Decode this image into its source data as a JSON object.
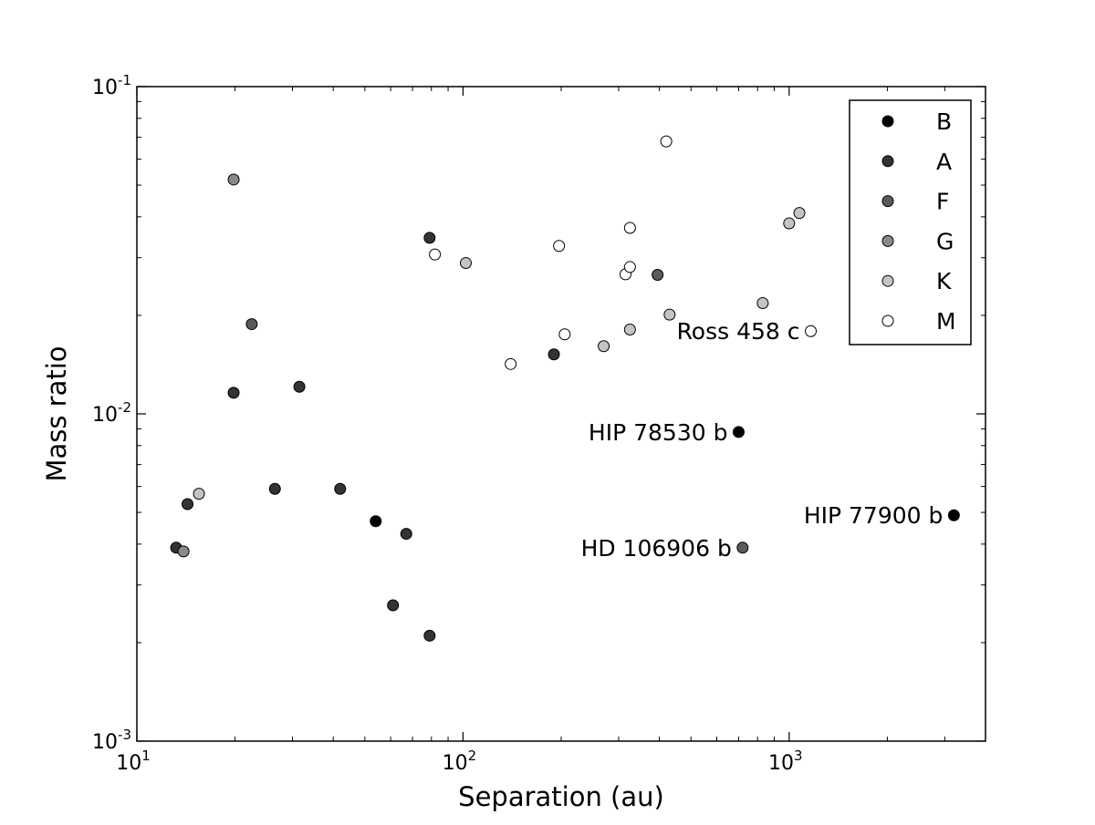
{
  "chart_data": {
    "type": "scatter",
    "title": "",
    "xlabel": "Separation (au)",
    "ylabel": "Mass ratio",
    "xscale": "log",
    "yscale": "log",
    "xlim": [
      10,
      4000
    ],
    "ylim": [
      0.001,
      0.1
    ],
    "grid": false,
    "legend_position": "top-right",
    "x_ticks": [
      {
        "value": 10,
        "base": "10",
        "exp": "1"
      },
      {
        "value": 100,
        "base": "10",
        "exp": "2"
      },
      {
        "value": 1000,
        "base": "10",
        "exp": "3"
      }
    ],
    "y_ticks": [
      {
        "value": 0.001,
        "base": "10",
        "exp": "-3"
      },
      {
        "value": 0.01,
        "base": "10",
        "exp": "-2"
      },
      {
        "value": 0.1,
        "base": "10",
        "exp": "-1"
      }
    ],
    "series": [
      {
        "name": "B",
        "color": "#000000",
        "points": [
          {
            "x": 54,
            "y": 0.0047
          },
          {
            "x": 700,
            "y": 0.0088
          },
          {
            "x": 3200,
            "y": 0.0049
          }
        ]
      },
      {
        "name": "A",
        "color": "#333333",
        "points": [
          {
            "x": 13.2,
            "y": 0.0039
          },
          {
            "x": 14.3,
            "y": 0.0053
          },
          {
            "x": 19.8,
            "y": 0.0116
          },
          {
            "x": 26.5,
            "y": 0.0059
          },
          {
            "x": 31.5,
            "y": 0.0121
          },
          {
            "x": 42,
            "y": 0.0059
          },
          {
            "x": 61,
            "y": 0.0026
          },
          {
            "x": 67,
            "y": 0.0043
          },
          {
            "x": 79,
            "y": 0.0021
          },
          {
            "x": 79,
            "y": 0.0345
          },
          {
            "x": 190,
            "y": 0.0152
          }
        ]
      },
      {
        "name": "F",
        "color": "#5a5a5a",
        "points": [
          {
            "x": 22.5,
            "y": 0.0188
          },
          {
            "x": 395,
            "y": 0.0266
          },
          {
            "x": 720,
            "y": 0.0039
          }
        ]
      },
      {
        "name": "G",
        "color": "#8a8a8a",
        "points": [
          {
            "x": 13.9,
            "y": 0.0038
          },
          {
            "x": 19.8,
            "y": 0.052
          }
        ]
      },
      {
        "name": "K",
        "color": "#c4c4c4",
        "points": [
          {
            "x": 15.5,
            "y": 0.0057
          },
          {
            "x": 102,
            "y": 0.0289
          },
          {
            "x": 270,
            "y": 0.0161
          },
          {
            "x": 325,
            "y": 0.0181
          },
          {
            "x": 430,
            "y": 0.0201
          },
          {
            "x": 830,
            "y": 0.0218
          },
          {
            "x": 1000,
            "y": 0.0382
          },
          {
            "x": 1075,
            "y": 0.0411
          }
        ]
      },
      {
        "name": "M",
        "color": "#ffffff",
        "points": [
          {
            "x": 82,
            "y": 0.0307
          },
          {
            "x": 140,
            "y": 0.0142
          },
          {
            "x": 197,
            "y": 0.0326
          },
          {
            "x": 205,
            "y": 0.0175
          },
          {
            "x": 315,
            "y": 0.0267
          },
          {
            "x": 325,
            "y": 0.0281
          },
          {
            "x": 325,
            "y": 0.037
          },
          {
            "x": 420,
            "y": 0.068
          },
          {
            "x": 1165,
            "y": 0.0179
          }
        ]
      }
    ],
    "annotations": [
      {
        "text": "Ross 458 c",
        "x": 1165,
        "y": 0.0179
      },
      {
        "text": "HIP 78530 b",
        "x": 700,
        "y": 0.0088
      },
      {
        "text": "HIP 77900 b",
        "x": 3200,
        "y": 0.0049
      },
      {
        "text": "HD 106906 b",
        "x": 720,
        "y": 0.0039
      }
    ]
  }
}
